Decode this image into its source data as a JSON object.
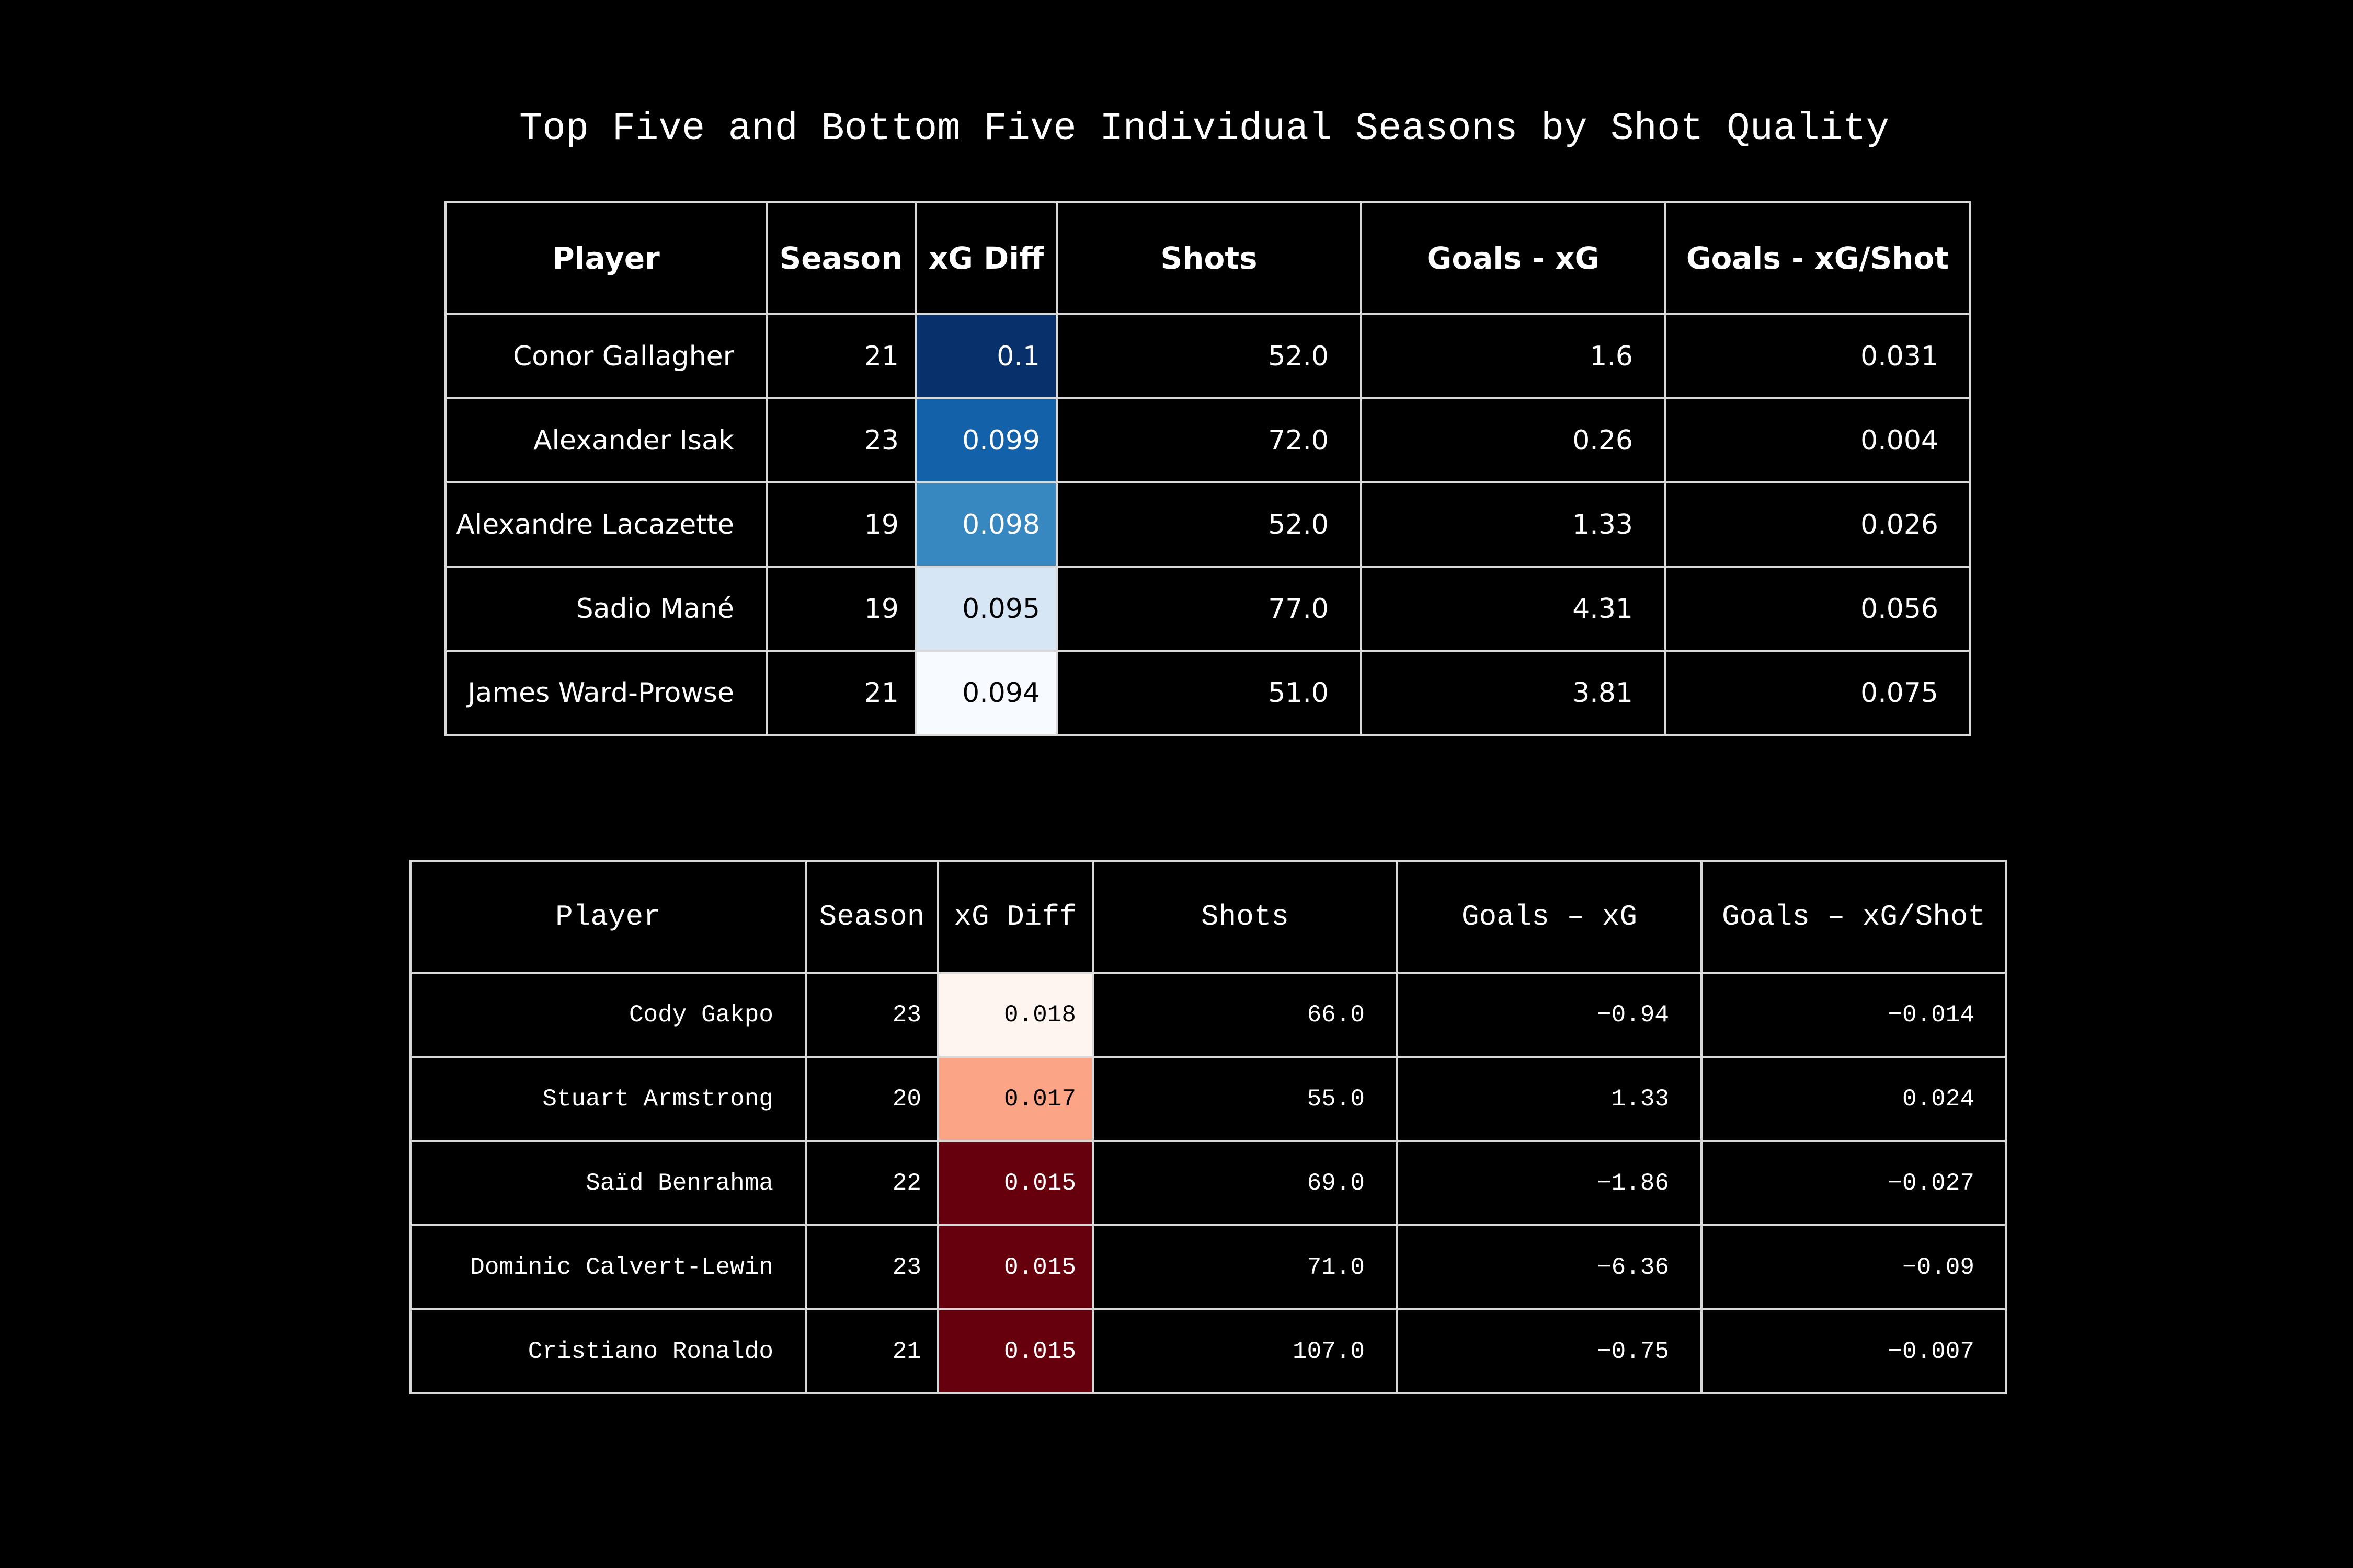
{
  "title": "Top Five and Bottom Five Individual Seasons by Shot Quality",
  "chart_data": [
    {
      "type": "table",
      "columns": [
        "Player",
        "Season",
        "xG Diff",
        "Shots",
        "Goals - xG",
        "Goals - xG/Shot"
      ],
      "rows": [
        [
          "Conor Gallagher",
          "21",
          "0.1",
          "52.0",
          "1.6",
          "0.031"
        ],
        [
          "Alexander Isak",
          "23",
          "0.099",
          "72.0",
          "0.26",
          "0.004"
        ],
        [
          "Alexandre Lacazette",
          "19",
          "0.098",
          "52.0",
          "1.33",
          "0.026"
        ],
        [
          "Sadio Mané",
          "19",
          "0.095",
          "77.0",
          "4.31",
          "0.056"
        ],
        [
          "James Ward-Prowse",
          "21",
          "0.094",
          "51.0",
          "3.81",
          "0.075"
        ]
      ],
      "xg_diff_colors": [
        "#08306b",
        "#1361a9",
        "#3787c0",
        "#d6e6f4",
        "#f7fbff"
      ],
      "xg_diff_text_colors": [
        "#ffffff",
        "#ffffff",
        "#ffffff",
        "#000000",
        "#000000"
      ],
      "colormap": "Blues"
    },
    {
      "type": "table",
      "columns": [
        "Player",
        "Season",
        "xG Diff",
        "Shots",
        "Goals – xG",
        "Goals – xG/Shot"
      ],
      "rows": [
        [
          "Cody Gakpo",
          "23",
          "0.018",
          "66.0",
          "−0.94",
          "−0.014"
        ],
        [
          "Stuart Armstrong",
          "20",
          "0.017",
          "55.0",
          "1.33",
          "0.024"
        ],
        [
          "Saïd Benrahma",
          "22",
          "0.015",
          "69.0",
          "−1.86",
          "−0.027"
        ],
        [
          "Dominic Calvert-Lewin",
          "23",
          "0.015",
          "71.0",
          "−6.36",
          "−0.09"
        ],
        [
          "Cristiano Ronaldo",
          "21",
          "0.015",
          "107.0",
          "−0.75",
          "−0.007"
        ]
      ],
      "xg_diff_colors": [
        "#fff5f0",
        "#fca486",
        "#67000d",
        "#67000d",
        "#67000d"
      ],
      "xg_diff_text_colors": [
        "#000000",
        "#000000",
        "#ffffff",
        "#ffffff",
        "#ffffff"
      ],
      "colormap": "Reds"
    }
  ]
}
